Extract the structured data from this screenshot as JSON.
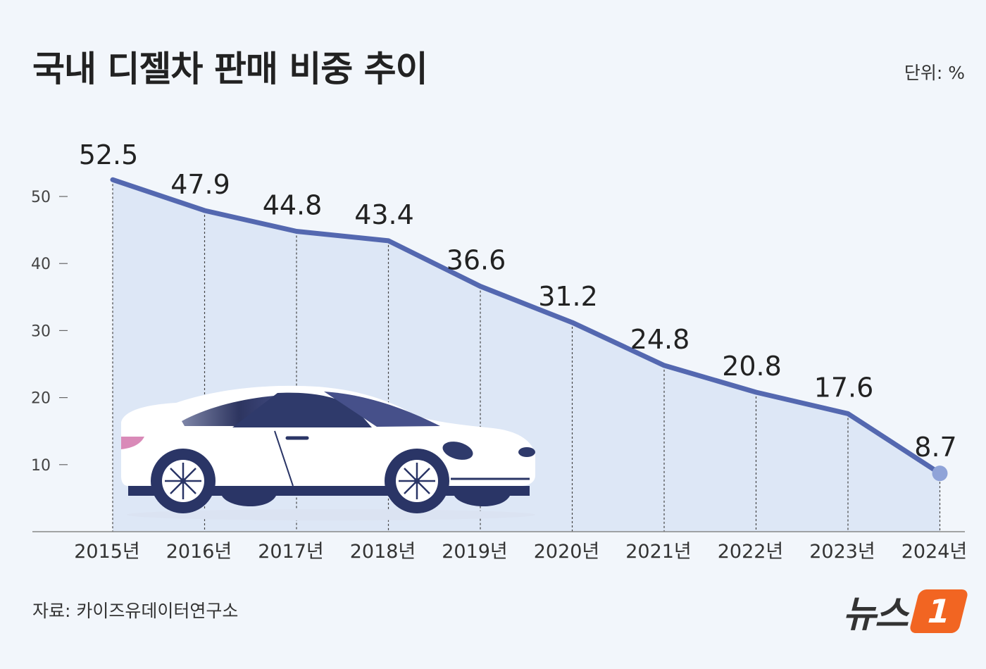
{
  "header": {
    "title": "국내 디젤차 판매 비중 추이",
    "unit": "단위: %"
  },
  "footer": {
    "source": "자료: 카이즈유데이터연구소",
    "logo_text": "뉴스",
    "logo_mark": "1"
  },
  "chart_data": {
    "type": "area",
    "title": "국내 디젤차 판매 비중 추이",
    "xlabel": "",
    "ylabel": "",
    "categories": [
      "2015년",
      "2016년",
      "2017년",
      "2018년",
      "2019년",
      "2020년",
      "2021년",
      "2022년",
      "2023년",
      "2024년"
    ],
    "values": [
      52.5,
      47.9,
      44.8,
      43.4,
      36.6,
      31.2,
      24.8,
      20.8,
      17.6,
      8.7
    ],
    "data_labels": [
      "52.5",
      "47.9",
      "44.8",
      "43.4",
      "36.6",
      "31.2",
      "24.8",
      "20.8",
      "17.6",
      "8.7"
    ],
    "ylim": [
      0,
      58
    ],
    "yticks": [
      10,
      20,
      30,
      40,
      50
    ],
    "grid": false,
    "colors": {
      "line": "#5468b0",
      "fill": "#dde7f6",
      "dot": "#8fa3d8",
      "car_body": "#ffffff",
      "car_dark": "#2a3566",
      "tail_light": "#d98ab8"
    }
  },
  "illustration": {
    "icon": "car-icon"
  }
}
